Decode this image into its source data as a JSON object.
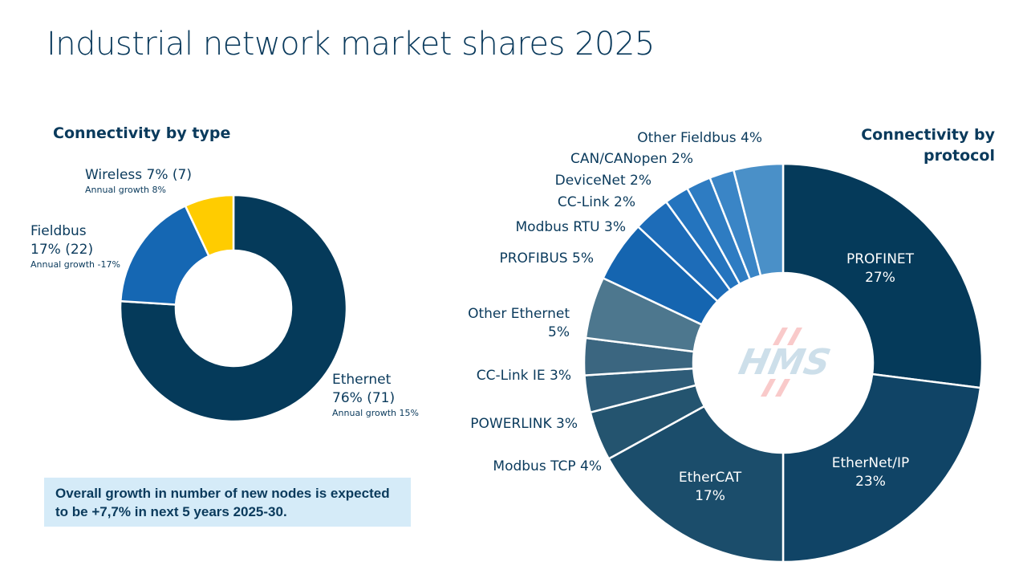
{
  "title": "Industrial network market shares 2025",
  "note": "Overall growth in number of new nodes is expected to be +7,7% in next 5 years 2025-30.",
  "logo_text": "HMS",
  "chart_data": [
    {
      "type": "pie",
      "donut": true,
      "title": "Connectivity by type",
      "categories": [
        "Ethernet",
        "Fieldbus",
        "Wireless"
      ],
      "values": [
        76,
        17,
        7
      ],
      "previous_values": [
        71,
        22,
        7
      ],
      "labels": [
        "76% (71)",
        "17% (22)",
        "7% (7)"
      ],
      "growth": [
        "Annual growth 15%",
        "Annual growth -17%",
        "Annual growth 8%"
      ],
      "colors": [
        "#053a5a",
        "#1567b3",
        "#ffcc00"
      ]
    },
    {
      "type": "pie",
      "donut": true,
      "title": "Connectivity by protocol",
      "categories": [
        "PROFINET",
        "EtherNet/IP",
        "EtherCAT",
        "Modbus TCP",
        "POWERLINK",
        "CC-Link IE",
        "Other Ethernet",
        "PROFIBUS",
        "Modbus RTU",
        "CC-Link",
        "DeviceNet",
        "CAN/CANopen",
        "Other Fieldbus"
      ],
      "values": [
        27,
        23,
        17,
        4,
        3,
        3,
        5,
        5,
        3,
        2,
        2,
        2,
        4
      ],
      "labels": [
        "27%",
        "23%",
        "17%",
        "4%",
        "3%",
        "3%",
        "5%",
        "5%",
        "3%",
        "2%",
        "2%",
        "2%",
        "4%"
      ],
      "colors": [
        "#053a5a",
        "#104466",
        "#1b4d6b",
        "#24546f",
        "#2e5c78",
        "#3b6680",
        "#4d778e",
        "#1565b0",
        "#1d6cb8",
        "#2474be",
        "#2e7cc2",
        "#3a85c6",
        "#4a90c8"
      ]
    }
  ]
}
